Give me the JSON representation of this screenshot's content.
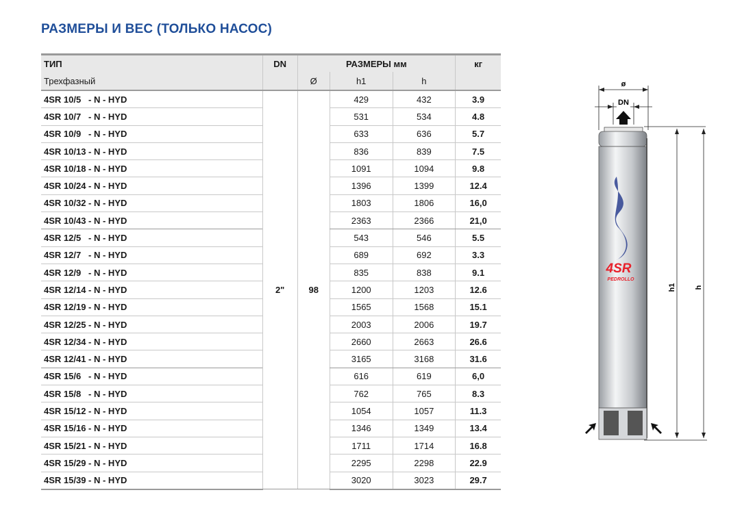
{
  "title": "РАЗМЕРЫ И ВЕС  (ТОЛЬКО НАСОС)",
  "table": {
    "headers": {
      "type": "ТИП",
      "dn": "DN",
      "dims": "РАЗМЕРЫ мм",
      "kg": "кг",
      "subtype": "Трехфазный",
      "diam": "Ø",
      "h1": "h1",
      "h": "h"
    },
    "dn_value": "2\"",
    "diam_value": "98",
    "rows": [
      [
        "4SR 10/5   - N - HYD",
        "429",
        "432",
        "3.9"
      ],
      [
        "4SR 10/7   - N - HYD",
        "531",
        "534",
        "4.8"
      ],
      [
        "4SR 10/9   - N - HYD",
        "633",
        "636",
        "5.7"
      ],
      [
        "4SR 10/13 - N - HYD",
        "836",
        "839",
        "7.5"
      ],
      [
        "4SR 10/18 - N - HYD",
        "1091",
        "1094",
        "9.8"
      ],
      [
        "4SR 10/24 - N - HYD",
        "1396",
        "1399",
        "12.4"
      ],
      [
        "4SR 10/32 - N - HYD",
        "1803",
        "1806",
        "16,0"
      ],
      [
        "4SR 10/43 - N - HYD",
        "2363",
        "2366",
        "21,0"
      ],
      [
        "4SR 12/5   - N - HYD",
        "543",
        "546",
        "5.5"
      ],
      [
        "4SR 12/7   - N - HYD",
        "689",
        "692",
        "3.3"
      ],
      [
        "4SR 12/9   - N - HYD",
        "835",
        "838",
        "9.1"
      ],
      [
        "4SR 12/14 - N - HYD",
        "1200",
        "1203",
        "12.6"
      ],
      [
        "4SR 12/19 - N - HYD",
        "1565",
        "1568",
        "15.1"
      ],
      [
        "4SR 12/25 - N - HYD",
        "2003",
        "2006",
        "19.7"
      ],
      [
        "4SR 12/34 - N - HYD",
        "2660",
        "2663",
        "26.6"
      ],
      [
        "4SR 12/41 - N - HYD",
        "3165",
        "3168",
        "31.6"
      ],
      [
        "4SR 15/6   - N - HYD",
        "616",
        "619",
        "6,0"
      ],
      [
        "4SR 15/8   - N - HYD",
        "762",
        "765",
        "8.3"
      ],
      [
        "4SR 15/12 - N - HYD",
        "1054",
        "1057",
        "11.3"
      ],
      [
        "4SR 15/16 - N - HYD",
        "1346",
        "1349",
        "13.4"
      ],
      [
        "4SR 15/21 - N - HYD",
        "1711",
        "1714",
        "16.8"
      ],
      [
        "4SR 15/29 - N - HYD",
        "2295",
        "2298",
        "22.9"
      ],
      [
        "4SR 15/39 - N - HYD",
        "3020",
        "3023",
        "29.7"
      ]
    ]
  },
  "drawing": {
    "diam_label": "ø",
    "dn_label": "DN",
    "h1_label": "h1",
    "h_label": "h",
    "model_logo": "4SR",
    "brand_logo": "PEDROLLO"
  },
  "colors": {
    "title": "#1f4e99",
    "logo_red": "#e8202a",
    "logo_blue": "#1f3f8f"
  }
}
